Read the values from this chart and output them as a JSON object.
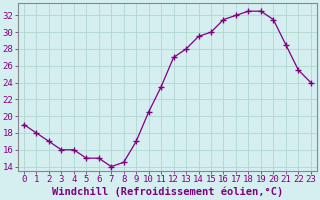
{
  "x": [
    0,
    1,
    2,
    3,
    4,
    5,
    6,
    7,
    8,
    9,
    10,
    11,
    12,
    13,
    14,
    15,
    16,
    17,
    18,
    19,
    20,
    21,
    22,
    23
  ],
  "y": [
    19,
    18,
    17,
    16,
    16,
    15,
    15,
    14,
    14.5,
    17,
    20.5,
    23.5,
    27,
    28,
    29.5,
    30,
    31.5,
    32,
    32.5,
    32.5,
    31.5,
    28.5,
    25.5,
    24
  ],
  "line_color": "#800080",
  "marker": "+",
  "xlabel": "Windchill (Refroidissement éolien,°C)",
  "ylabel_ticks": [
    14,
    16,
    18,
    20,
    22,
    24,
    26,
    28,
    30,
    32
  ],
  "ylim": [
    13.5,
    33.5
  ],
  "xlim": [
    -0.5,
    23.5
  ],
  "bg_color": "#d5eef0",
  "grid_color": "#b0d8d0",
  "xlabel_fontsize": 7.5,
  "tick_fontsize": 6.5,
  "border_color": "#888888"
}
